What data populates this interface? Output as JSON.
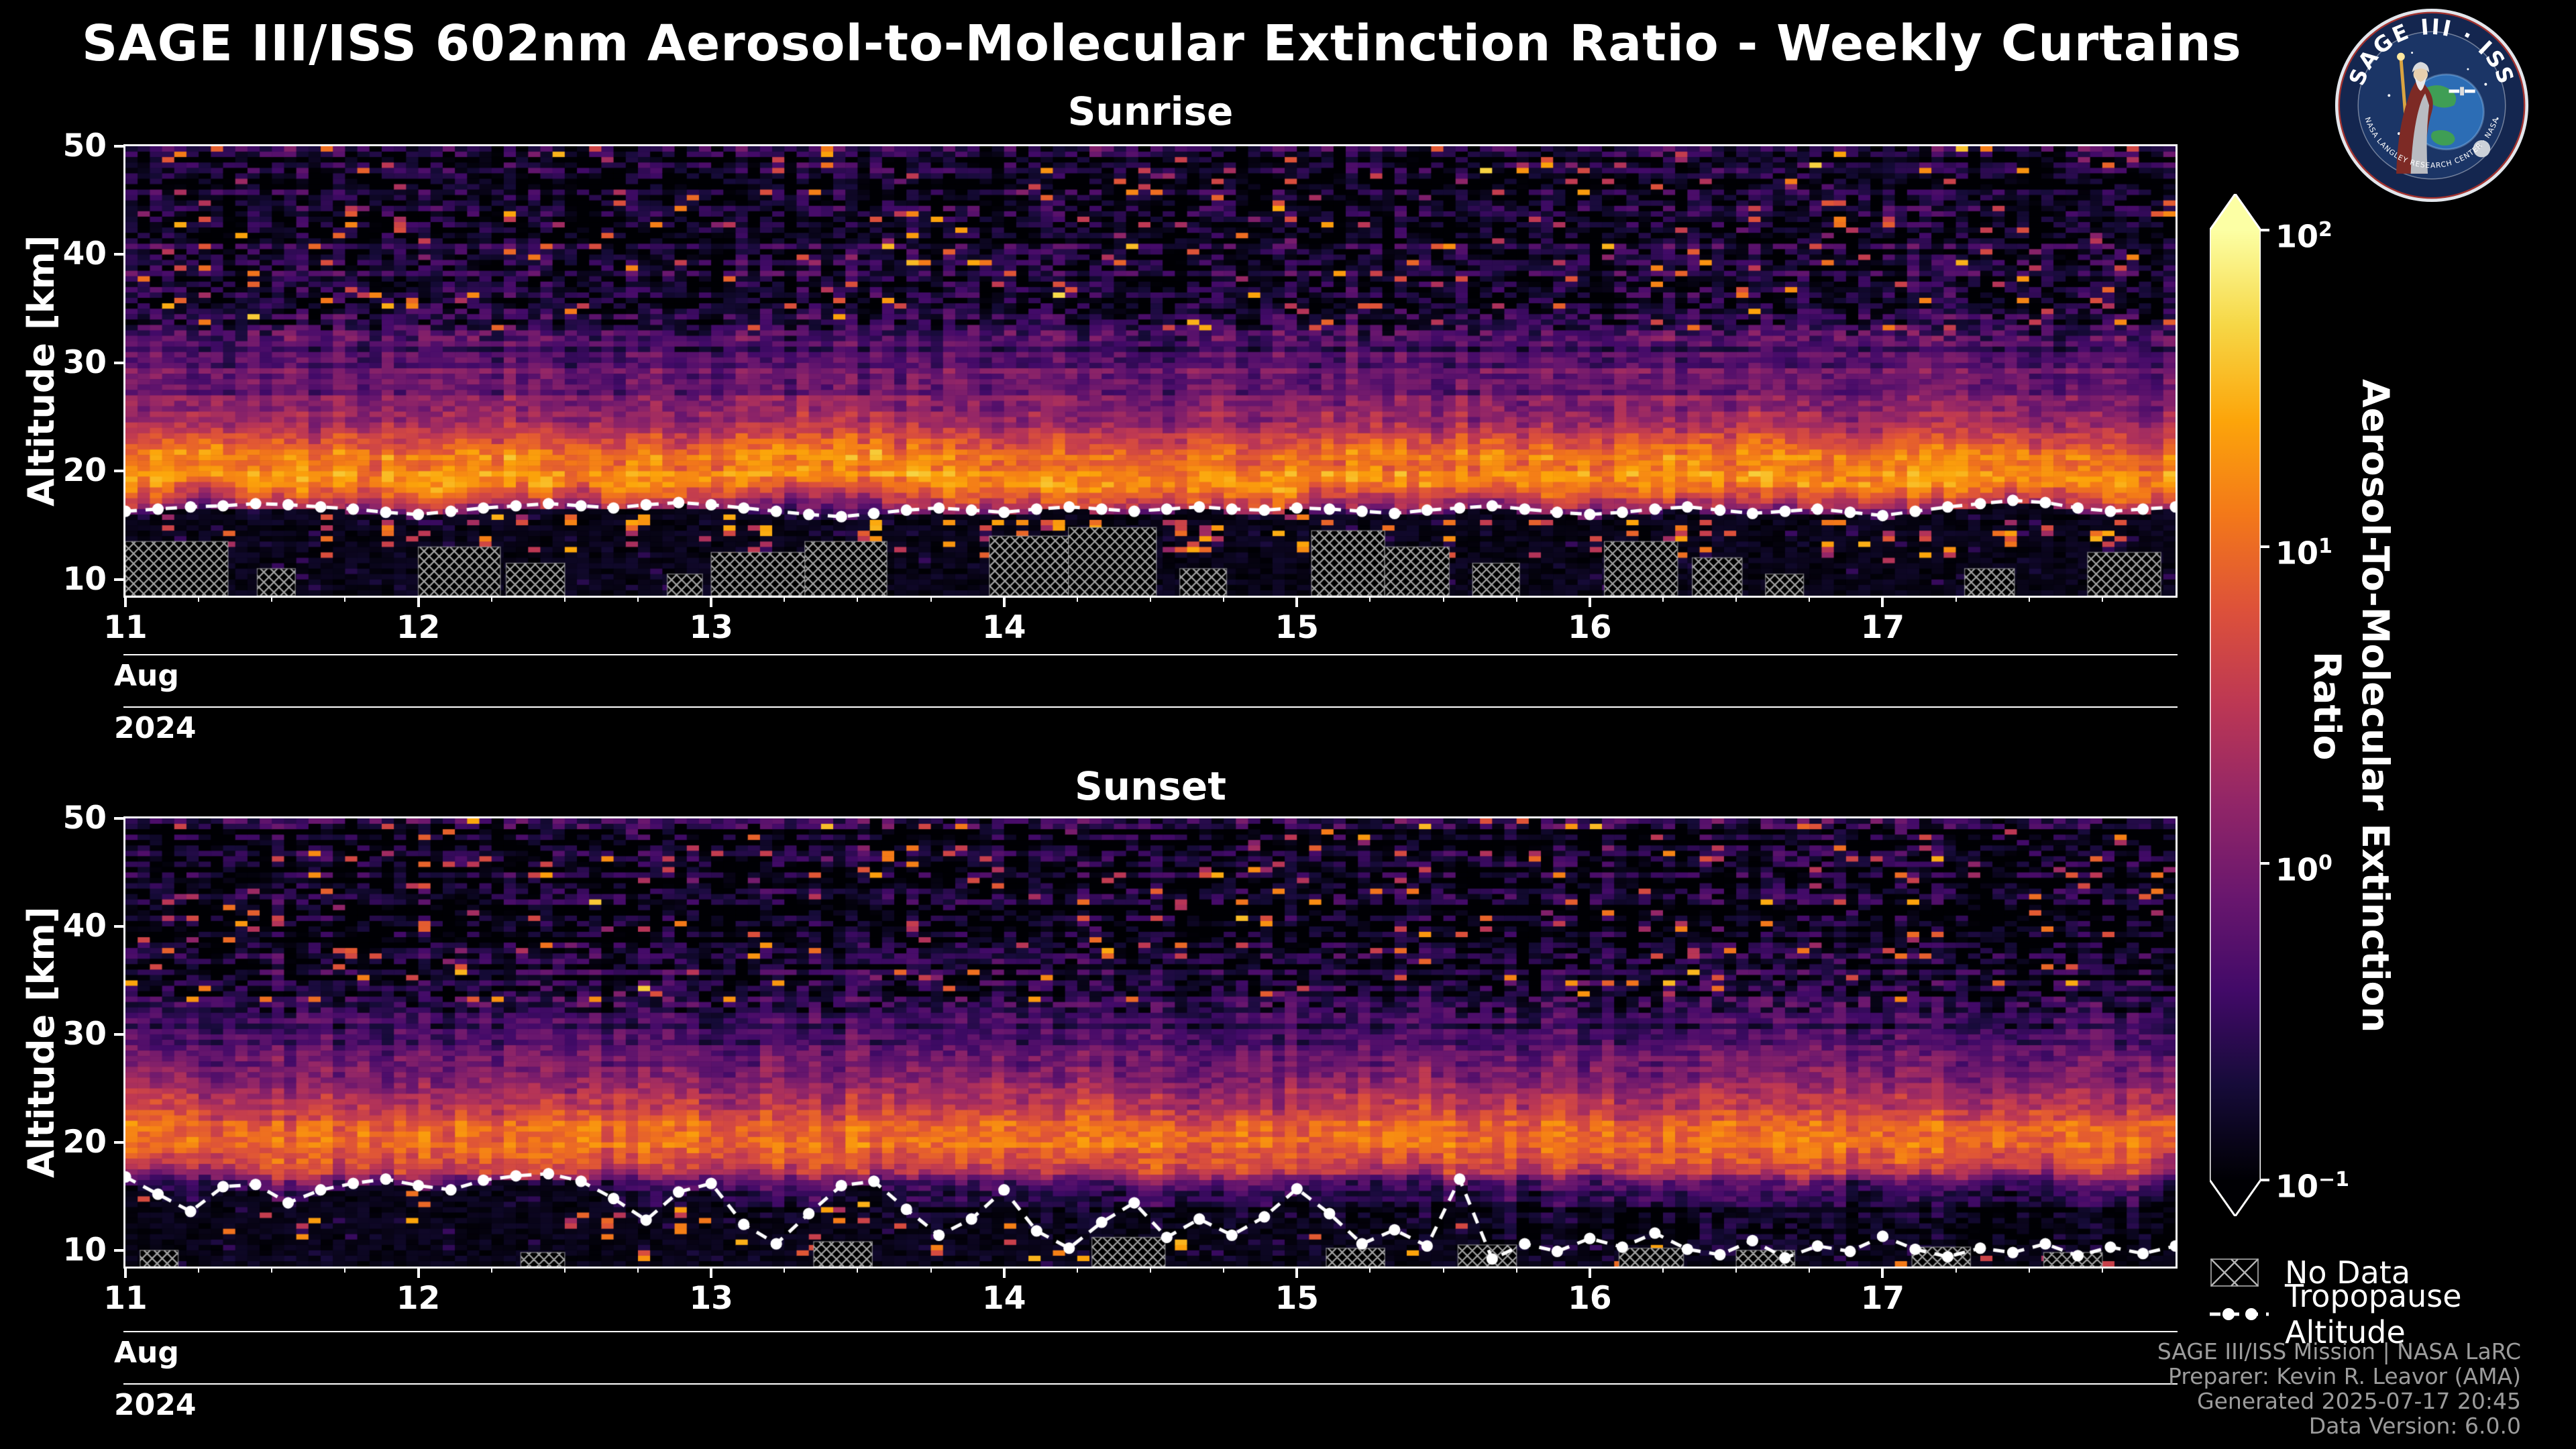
{
  "title": "SAGE III/ISS 602nm Aerosol-to-Molecular Extinction Ratio - Weekly Curtains",
  "logo": {
    "title_arc": "SAGE III · ISS",
    "ring_text": "BRL · NASA LANGLEY RESEARCH CENTER · NASA · ESA"
  },
  "axes": {
    "y_label": "Altitude [km]",
    "y_ticks": [
      50,
      40,
      30,
      20,
      10
    ],
    "x_ticks": [
      11,
      12,
      13,
      14,
      15,
      16,
      17
    ],
    "month_label": "Aug",
    "year_label": "2024",
    "y_min": 8.5,
    "y_max": 50,
    "x_min": 11,
    "x_max": 18
  },
  "colorbar": {
    "label": "Aerosol-To-Molecular Extinction Ratio",
    "base": "10",
    "tick_exponents": [
      "2",
      "1",
      "0",
      "−1"
    ],
    "scale": "log",
    "value_range": [
      0.1,
      100
    ],
    "colormap": "inferno",
    "colormap_stops": [
      [
        0.0,
        "#000004"
      ],
      [
        0.1,
        "#160b39"
      ],
      [
        0.2,
        "#420a68"
      ],
      [
        0.3,
        "#6a176e"
      ],
      [
        0.4,
        "#932667"
      ],
      [
        0.5,
        "#bc3754"
      ],
      [
        0.6,
        "#dd513a"
      ],
      [
        0.7,
        "#f37819"
      ],
      [
        0.8,
        "#fca50a"
      ],
      [
        0.9,
        "#f6d746"
      ],
      [
        1.0,
        "#fcffa4"
      ]
    ]
  },
  "legend": {
    "no_data": "No Data",
    "tropopause": "Tropopause Altitude"
  },
  "credits": [
    "SAGE III/ISS Mission | NASA LaRC",
    "Preparer: Kevin R. Leavor (AMA)",
    "Generated 2025-07-17 20:45",
    "Data Version: 6.0.0"
  ],
  "chart_data": [
    {
      "type": "heatmap",
      "title": "Sunrise",
      "x_range": [
        "2024-08-11",
        "2024-08-18"
      ],
      "y_range_km": [
        8.5,
        50
      ],
      "value_scale": "log10",
      "value_range": [
        0.1,
        100
      ],
      "profile_log10": [
        [
          8.5,
          -0.9
        ],
        [
          14,
          -0.8
        ],
        [
          16,
          -0.3
        ],
        [
          17.5,
          0.6
        ],
        [
          19,
          1.25
        ],
        [
          21,
          1.15
        ],
        [
          23,
          0.6
        ],
        [
          26,
          0.1
        ],
        [
          30,
          -0.25
        ],
        [
          34,
          -0.55
        ],
        [
          38,
          -0.75
        ],
        [
          44,
          -0.9
        ],
        [
          50,
          -0.95
        ]
      ],
      "tropopause_km": [
        16.3,
        16.5,
        16.7,
        16.8,
        17.0,
        16.9,
        16.7,
        16.5,
        16.2,
        16.0,
        16.3,
        16.6,
        16.8,
        17.0,
        16.8,
        16.6,
        16.9,
        17.1,
        16.9,
        16.6,
        16.3,
        16.0,
        15.8,
        16.1,
        16.4,
        16.6,
        16.4,
        16.2,
        16.5,
        16.7,
        16.5,
        16.3,
        16.5,
        16.7,
        16.5,
        16.4,
        16.6,
        16.5,
        16.3,
        16.1,
        16.4,
        16.6,
        16.8,
        16.5,
        16.2,
        16.0,
        16.2,
        16.5,
        16.7,
        16.4,
        16.1,
        16.3,
        16.5,
        16.2,
        15.9,
        16.3,
        16.7,
        17.0,
        17.3,
        17.1,
        16.6,
        16.3,
        16.5,
        16.7
      ],
      "no_data_regions": [
        [
          11.0,
          11.35,
          8.5,
          13.5
        ],
        [
          11.45,
          11.58,
          8.5,
          11.0
        ],
        [
          12.0,
          12.28,
          8.5,
          13.0
        ],
        [
          12.3,
          12.5,
          8.5,
          11.5
        ],
        [
          12.85,
          12.97,
          8.5,
          10.5
        ],
        [
          13.0,
          13.32,
          8.5,
          12.5
        ],
        [
          13.32,
          13.6,
          8.5,
          13.5
        ],
        [
          13.95,
          14.22,
          8.5,
          14.0
        ],
        [
          14.22,
          14.52,
          8.5,
          14.8
        ],
        [
          14.6,
          14.76,
          8.5,
          11.0
        ],
        [
          15.05,
          15.3,
          8.5,
          14.5
        ],
        [
          15.3,
          15.52,
          8.5,
          13.0
        ],
        [
          15.6,
          15.76,
          8.5,
          11.5
        ],
        [
          16.05,
          16.3,
          8.5,
          13.5
        ],
        [
          16.35,
          16.52,
          8.5,
          12.0
        ],
        [
          16.6,
          16.73,
          8.5,
          10.5
        ],
        [
          17.28,
          17.45,
          8.5,
          11.0
        ],
        [
          17.7,
          17.95,
          8.5,
          12.5
        ]
      ]
    },
    {
      "type": "heatmap",
      "title": "Sunset",
      "x_range": [
        "2024-08-11",
        "2024-08-18"
      ],
      "y_range_km": [
        8.5,
        50
      ],
      "value_scale": "log10",
      "value_range": [
        0.1,
        100
      ],
      "profile_log10": [
        [
          8.5,
          -0.95
        ],
        [
          14,
          -0.85
        ],
        [
          16,
          -0.35
        ],
        [
          17.5,
          0.5
        ],
        [
          19,
          0.95
        ],
        [
          21.5,
          0.95
        ],
        [
          24,
          0.45
        ],
        [
          27,
          0.0
        ],
        [
          30,
          -0.4
        ],
        [
          34,
          -0.7
        ],
        [
          40,
          -0.9
        ],
        [
          50,
          -0.97
        ]
      ],
      "tropopause_km": [
        16.8,
        15.2,
        13.6,
        15.9,
        16.1,
        14.4,
        15.6,
        16.2,
        16.6,
        16.0,
        15.6,
        16.5,
        16.9,
        17.1,
        16.4,
        14.8,
        12.8,
        15.4,
        16.2,
        12.4,
        10.6,
        13.4,
        16.0,
        16.4,
        13.8,
        11.4,
        12.9,
        15.6,
        11.8,
        10.2,
        12.6,
        14.4,
        11.2,
        12.9,
        11.4,
        13.1,
        15.7,
        13.4,
        10.6,
        11.9,
        10.4,
        16.6,
        9.2,
        10.6,
        9.9,
        11.1,
        10.3,
        11.6,
        10.1,
        9.6,
        10.9,
        9.3,
        10.4,
        9.9,
        11.3,
        10.1,
        9.4,
        10.2,
        9.8,
        10.6,
        9.5,
        10.3,
        9.7,
        10.4
      ],
      "no_data_regions": [
        [
          11.05,
          11.18,
          8.5,
          10.0
        ],
        [
          12.35,
          12.5,
          8.5,
          9.8
        ],
        [
          13.35,
          13.55,
          8.5,
          10.8
        ],
        [
          14.3,
          14.55,
          8.5,
          11.2
        ],
        [
          15.1,
          15.3,
          8.5,
          10.2
        ],
        [
          15.55,
          15.75,
          8.5,
          10.5
        ],
        [
          16.1,
          16.32,
          8.5,
          10.2
        ],
        [
          16.5,
          16.7,
          8.5,
          10.0
        ],
        [
          17.1,
          17.3,
          8.5,
          10.3
        ],
        [
          17.55,
          17.75,
          8.5,
          9.8
        ]
      ]
    }
  ]
}
